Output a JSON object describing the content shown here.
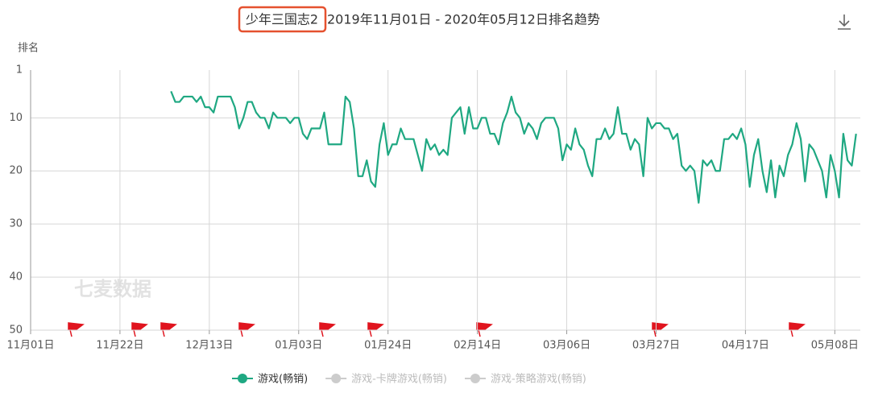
{
  "chart_data": {
    "type": "line",
    "title_highlight": "少年三国志2",
    "title": "2019年11月01日 - 2020年05月12日排名趋势",
    "y_label": "排名",
    "watermark": "七麦数据",
    "xlim": [
      0,
      195
    ],
    "xticks": [
      {
        "value": 0,
        "label": "11月01日"
      },
      {
        "value": 21,
        "label": "11月22日"
      },
      {
        "value": 42,
        "label": "12月13日"
      },
      {
        "value": 63,
        "label": "01月03日"
      },
      {
        "value": 84,
        "label": "01月24日"
      },
      {
        "value": 105,
        "label": "02月14日"
      },
      {
        "value": 126,
        "label": "03月06日"
      },
      {
        "value": 147,
        "label": "03月27日"
      },
      {
        "value": 168,
        "label": "04月17日"
      },
      {
        "value": 189,
        "label": "05月08日"
      }
    ],
    "ylim": [
      1,
      50
    ],
    "y_inverted": true,
    "yticks": [
      1,
      10,
      20,
      30,
      40,
      50
    ],
    "grid": true,
    "x": [
      33,
      34,
      35,
      36,
      37,
      38,
      39,
      40,
      41,
      42,
      43,
      44,
      45,
      46,
      47,
      48,
      49,
      50,
      51,
      52,
      53,
      54,
      55,
      56,
      57,
      58,
      59,
      60,
      61,
      62,
      63,
      64,
      65,
      66,
      67,
      68,
      69,
      70,
      71,
      72,
      73,
      74,
      75,
      76,
      77,
      78,
      79,
      80,
      81,
      82,
      83,
      84,
      85,
      86,
      87,
      88,
      89,
      90,
      91,
      92,
      93,
      94,
      95,
      96,
      97,
      98,
      99,
      100,
      101,
      102,
      103,
      104,
      105,
      106,
      107,
      108,
      109,
      110,
      111,
      112,
      113,
      114,
      115,
      116,
      117,
      118,
      119,
      120,
      121,
      122,
      123,
      124,
      125,
      126,
      127,
      128,
      129,
      130,
      131,
      132,
      133,
      134,
      135,
      136,
      137,
      138,
      139,
      140,
      141,
      142,
      143,
      144,
      145,
      146,
      147,
      148,
      149,
      150,
      151,
      152,
      153,
      154,
      155,
      156,
      157,
      158,
      159,
      160,
      161,
      162,
      163,
      164,
      165,
      166,
      167,
      168,
      169,
      170,
      171,
      172,
      173,
      174,
      175,
      176,
      177,
      178,
      179,
      180,
      181,
      182,
      183,
      184,
      185,
      186,
      187,
      188,
      189,
      190,
      191,
      192,
      193,
      194
    ],
    "series": [
      {
        "name": "游戏(畅销)",
        "color": "#1fa882",
        "values": [
          5,
          7,
          7,
          6,
          6,
          6,
          7,
          6,
          8,
          8,
          9,
          6,
          6,
          6,
          6,
          8,
          12,
          10,
          7,
          7,
          9,
          10,
          10,
          12,
          9,
          10,
          10,
          10,
          11,
          10,
          10,
          13,
          14,
          12,
          12,
          12,
          9,
          15,
          15,
          15,
          15,
          6,
          7,
          12,
          21,
          21,
          18,
          22,
          23,
          15,
          11,
          17,
          15,
          15,
          12,
          14,
          14,
          14,
          17,
          20,
          14,
          16,
          15,
          17,
          16,
          17,
          10,
          9,
          8,
          13,
          8,
          12,
          12,
          10,
          10,
          13,
          13,
          15,
          11,
          9,
          6,
          9,
          10,
          13,
          11,
          12,
          14,
          11,
          10,
          10,
          10,
          12,
          18,
          15,
          16,
          12,
          15,
          16,
          19,
          21,
          14,
          14,
          12,
          14,
          13,
          8,
          13,
          13,
          16,
          14,
          15,
          21,
          10,
          12,
          11,
          11,
          12,
          12,
          14,
          13,
          19,
          20,
          19,
          20,
          26,
          18,
          19,
          18,
          20,
          20,
          14,
          14,
          13,
          14,
          12,
          15,
          23,
          17,
          14,
          20,
          24,
          18,
          25,
          19,
          21,
          17,
          15,
          11,
          14,
          22,
          15,
          16,
          18,
          20,
          25,
          17,
          20,
          25,
          13,
          18,
          19,
          13
        ]
      }
    ],
    "inactive_series": [
      {
        "name": "游戏-卡牌游戏(畅销)",
        "color": "#cccccc"
      },
      {
        "name": "游戏-策略游戏(畅销)",
        "color": "#cccccc"
      }
    ]
  }
}
